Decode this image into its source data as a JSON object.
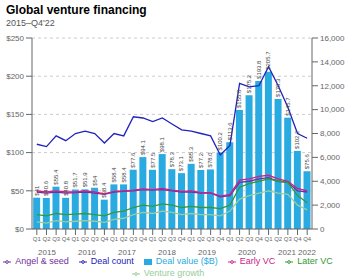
{
  "chart_data": {
    "type": "bar",
    "title": "Global venture financing",
    "subtitle": "2015–Q4'22",
    "categories": [
      "Q1",
      "Q2",
      "Q3",
      "Q4",
      "Q1",
      "Q2",
      "Q3",
      "Q4",
      "Q1",
      "Q2",
      "Q3",
      "Q4",
      "Q1",
      "Q2",
      "Q3",
      "Q4",
      "Q1",
      "Q2",
      "Q3",
      "Q4",
      "Q1",
      "Q2",
      "Q3",
      "Q4",
      "Q1",
      "Q2",
      "Q3",
      "Q4",
      "Q4"
    ],
    "series": [
      {
        "name": "Deal value ($B)",
        "type": "bar",
        "color": "#29abe2",
        "data_labels": true,
        "values": [
          41,
          40.6,
          55.4,
          40.8,
          51.7,
          51.9,
          54,
          38.4,
          58.4,
          58.4,
          77.6,
          94.1,
          77.5,
          98.1,
          78.3,
          73.1,
          85.3,
          77.2,
          78.0,
          100.2,
          113.6,
          155.8,
          175.2,
          193.8,
          205.7,
          170.3,
          145.7,
          102.2,
          75.6
        ],
        "value_labels": [
          "$41",
          "$40.6",
          "$55.4",
          "$40.8",
          "$51.7",
          "$51.9",
          "$54",
          "$38.4",
          "$58.4",
          "$58.4",
          "$77.6",
          "$94.1",
          "$77.5",
          "$98.1",
          "$78.3",
          "$73.1",
          "$85.3",
          "$77.2",
          "$78.0",
          "$100.2",
          "$113.6",
          "$155.8",
          "$175.2",
          "$193.8",
          "$205.7",
          "$170.3",
          "$145.7",
          "$102.2",
          "$75.6"
        ]
      },
      {
        "name": "Deal count",
        "type": "line",
        "axis": "y2",
        "color": "#2222bb",
        "values": [
          7100,
          6900,
          7800,
          7400,
          8000,
          8200,
          8000,
          7200,
          8000,
          7800,
          9400,
          9300,
          9000,
          9300,
          8800,
          8300,
          8200,
          8000,
          7800,
          6200,
          7000,
          12200,
          11900,
          12000,
          13600,
          12000,
          10200,
          8000,
          7600
        ]
      },
      {
        "name": "Angel & seed",
        "type": "line",
        "axis": "y2",
        "color": "#7030a0",
        "values": [
          3100,
          3000,
          3100,
          3000,
          3050,
          3100,
          3000,
          2900,
          3100,
          3150,
          3200,
          3300,
          3250,
          3300,
          3200,
          3100,
          3100,
          3000,
          3000,
          2700,
          2800,
          3900,
          4000,
          4200,
          4300,
          4000,
          3900,
          3200,
          3100
        ]
      },
      {
        "name": "Early VC",
        "type": "line",
        "axis": "y2",
        "color": "#cc2288",
        "values": [
          3200,
          3100,
          3200,
          3100,
          3100,
          3200,
          3100,
          2950,
          3150,
          3200,
          3250,
          3350,
          3300,
          3400,
          3250,
          3150,
          3200,
          3050,
          3050,
          2750,
          2900,
          4100,
          4200,
          4400,
          4500,
          4200,
          4000,
          3400,
          3200
        ]
      },
      {
        "name": "Later VC",
        "type": "line",
        "axis": "y2",
        "color": "#339933",
        "values": [
          1200,
          1100,
          1300,
          1200,
          1250,
          1300,
          1200,
          1100,
          1400,
          1500,
          1800,
          2000,
          1900,
          2100,
          2000,
          1800,
          1900,
          1800,
          1800,
          1700,
          2000,
          3500,
          3800,
          4000,
          4200,
          4000,
          3900,
          2800,
          2200
        ]
      },
      {
        "name": "Venture growth",
        "type": "line",
        "axis": "y2",
        "color": "#99cc99",
        "values": [
          600,
          500,
          700,
          600,
          650,
          700,
          650,
          550,
          800,
          900,
          1200,
          1400,
          1300,
          1500,
          1400,
          1200,
          1300,
          1200,
          1200,
          1100,
          1500,
          2500,
          2800,
          3000,
          3200,
          3000,
          2900,
          2000,
          1600
        ]
      }
    ],
    "ylim": [
      0,
      250
    ],
    "yticks": [
      0,
      {
        "value": 0,
        "label": "$0"
      },
      {
        "value": 50,
        "label": "$50"
      },
      {
        "value": 100,
        "label": "$100"
      },
      {
        "value": 150,
        "label": "$150"
      },
      {
        "value": 200,
        "label": "$200"
      },
      {
        "value": 250,
        "label": "$250"
      }
    ],
    "y2lim": [
      0,
      16000
    ],
    "y2ticks": [
      0,
      {
        "value": 2000,
        "label": "2,000"
      },
      {
        "value": 4000,
        "label": "4,000"
      },
      {
        "value": 6000,
        "label": "6,000"
      },
      {
        "value": 8000,
        "label": "8,000"
      },
      {
        "value": 10000,
        "label": "10,000"
      },
      {
        "value": 12000,
        "label": "12,000"
      },
      {
        "value": 14000,
        "label": "14,000"
      },
      {
        "value": 16000,
        "label": "16,000"
      }
    ],
    "grid": true,
    "legend": "bottom",
    "annotations": [
      {
        "text": "2015",
        "x": 1.5
      },
      {
        "text": "2016",
        "x": 5.5
      },
      {
        "text": "2017",
        "x": 9.5
      },
      {
        "text": "2018",
        "x": 13.5
      },
      {
        "text": "2019",
        "x": 17.5
      },
      {
        "text": "2020",
        "x": 21.5
      },
      {
        "text": "2021",
        "x": 25.5
      },
      {
        "text": "2022",
        "x": 27.5
      }
    ]
  }
}
